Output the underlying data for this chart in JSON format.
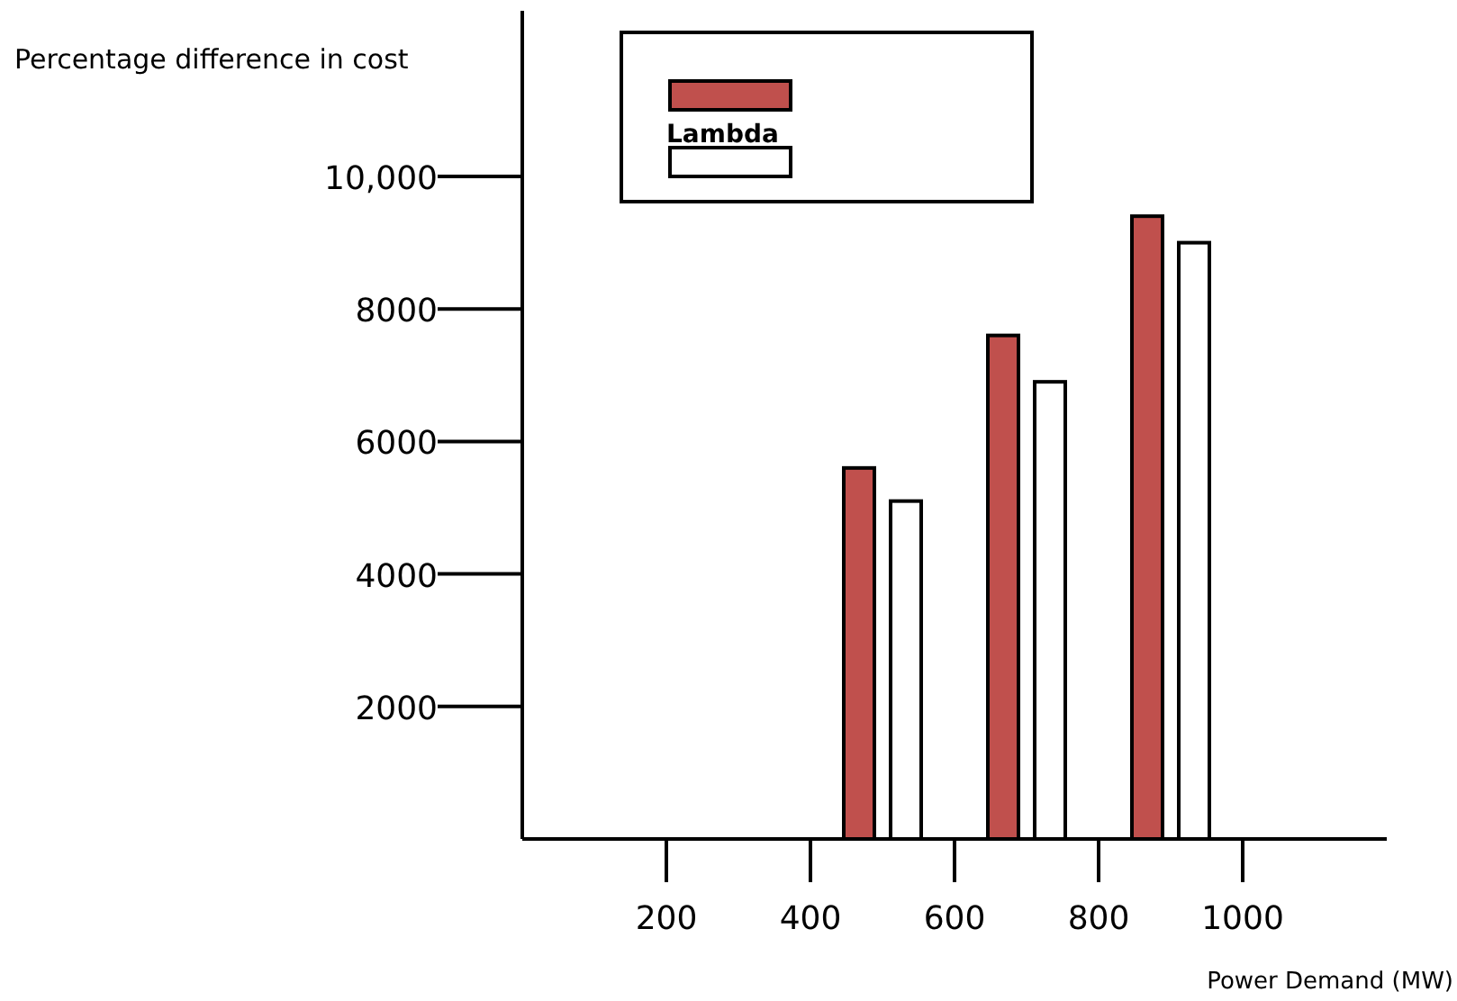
{
  "chart_data": {
    "type": "bar",
    "xlabel": "Power Demand (MW)",
    "ylabel": "Percentage difference in cost",
    "x": [
      500,
      700,
      900
    ],
    "series": [
      {
        "name": "Lambda",
        "color": "#c0504d",
        "values": [
          5600,
          7600,
          9400
        ]
      },
      {
        "color": "#ffffff",
        "values": [
          5100,
          6900,
          9000
        ]
      }
    ],
    "xlim": [
      0,
      1200
    ],
    "xticks": [
      200,
      400,
      600,
      800,
      1000
    ],
    "ylim": [
      0,
      12500
    ],
    "yticks": [
      2000,
      4000,
      6000,
      8000,
      {
        "value": 10000,
        "label": "10,000"
      }
    ],
    "legend": "top left",
    "grid": false
  }
}
